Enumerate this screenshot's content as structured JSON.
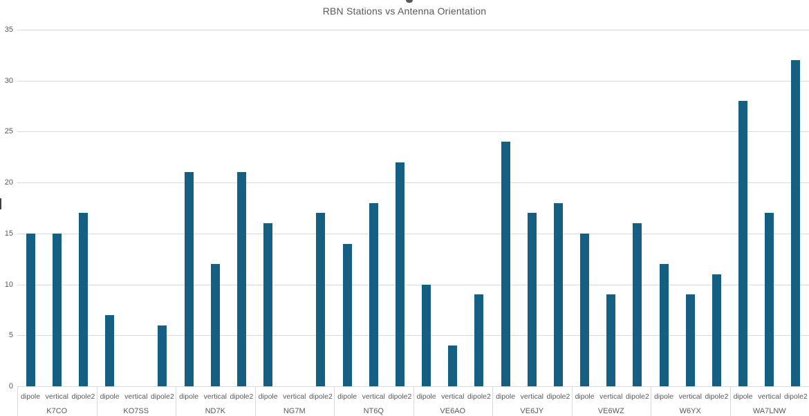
{
  "page": {
    "background": "#ffffff"
  },
  "chart_data": {
    "type": "bar",
    "title": "RBN Stations vs Antenna Orientation",
    "xlabel": "",
    "ylabel": "",
    "ylim": [
      0,
      35
    ],
    "ytick_interval": 5,
    "y_tick_labels": [
      "0",
      "5",
      "10",
      "15",
      "20",
      "25",
      "30",
      "35"
    ],
    "grid": "horizontal",
    "legend": "none",
    "bar_color": "#156082",
    "categories": [
      "K7CO",
      "KO7SS",
      "ND7K",
      "NG7M",
      "NT6Q",
      "VE6AO",
      "VE6JY",
      "VE6WZ",
      "W6YX",
      "WA7LNW"
    ],
    "sub_categories": [
      "dipole",
      "vertical",
      "dipole2"
    ],
    "series": [
      {
        "name": "dipole",
        "values": [
          15,
          7,
          21,
          16,
          14,
          10,
          24,
          15,
          12,
          28
        ]
      },
      {
        "name": "vertical",
        "values": [
          15,
          0,
          12,
          0,
          18,
          4,
          17,
          9,
          9,
          17
        ]
      },
      {
        "name": "dipole2",
        "values": [
          17,
          6,
          21,
          17,
          22,
          9,
          18,
          16,
          11,
          32
        ]
      }
    ]
  },
  "decorations": {
    "clipped_text_fragment_top": "",
    "clipped_text_fragment_left": ""
  }
}
